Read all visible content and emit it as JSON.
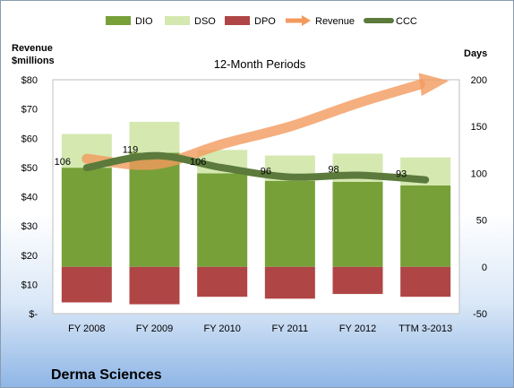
{
  "chart_data": {
    "type": "bar",
    "title": "12-Month Periods",
    "left_axis_label_line1": "Revenue",
    "left_axis_label_line2": "$millions",
    "right_axis_label": "Days",
    "company": "Derma Sciences",
    "categories": [
      "FY 2008",
      "FY 2009",
      "FY 2010",
      "FY 2011",
      "FY 2012",
      "TTM 3-2013"
    ],
    "left_axis": {
      "min": 0,
      "max": 80,
      "step": 10,
      "tick_labels": [
        "$-",
        "$10",
        "$20",
        "$30",
        "$40",
        "$50",
        "$60",
        "$70",
        "$80"
      ]
    },
    "right_axis": {
      "min": -50,
      "max": 200,
      "step": 50,
      "tick_labels": [
        "-50",
        "0",
        "50",
        "100",
        "150",
        "200"
      ]
    },
    "series": [
      {
        "name": "DIO",
        "kind": "stacked-bar",
        "color": "#77a038",
        "values": [
          106,
          122,
          100,
          92,
          91,
          87
        ]
      },
      {
        "name": "DSO",
        "kind": "stacked-bar",
        "color": "#d4e8b0",
        "values": [
          36,
          33,
          25,
          27,
          30,
          30
        ]
      },
      {
        "name": "DPO",
        "kind": "negative-bar",
        "color": "#b04545",
        "values": [
          -38,
          -40,
          -32,
          -34,
          -29,
          -32
        ]
      },
      {
        "name": "Revenue",
        "kind": "arrow-line",
        "color": "#f39a5e",
        "values": [
          53,
          51,
          58,
          64,
          72,
          79
        ]
      },
      {
        "name": "CCC",
        "kind": "line",
        "color": "#5b7a3b",
        "values": [
          106,
          119,
          106,
          96,
          98,
          93
        ],
        "labels": [
          "106",
          "119",
          "106",
          "96",
          "98",
          "93"
        ]
      }
    ],
    "legend_position": "top",
    "grid": false
  }
}
